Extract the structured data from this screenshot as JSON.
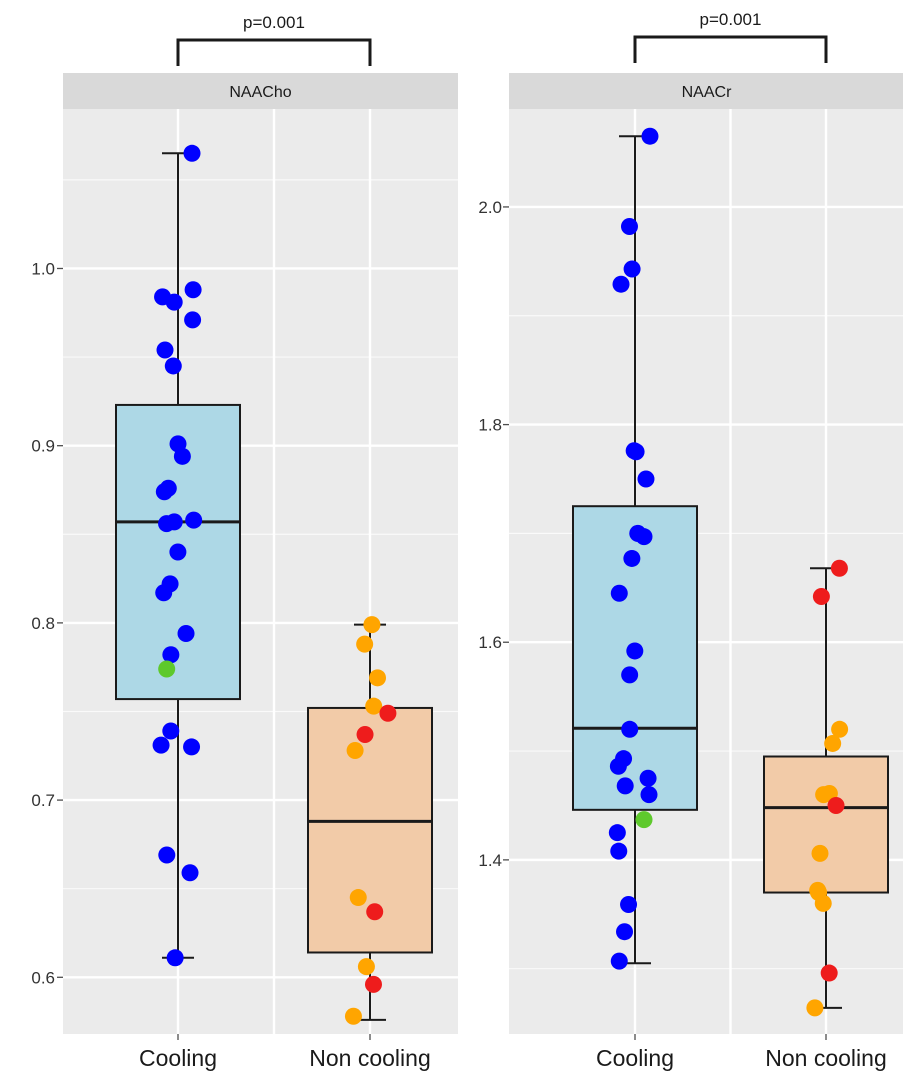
{
  "chart_data": [
    {
      "type": "box",
      "panel_title": "NAACho",
      "annotation": "p=0.001",
      "categories": [
        "Cooling",
        "Non cooling"
      ],
      "ylim": [
        0.568,
        1.09
      ],
      "yticks": [
        0.6,
        0.7,
        0.8,
        0.9,
        1.0
      ],
      "ytick_labels": [
        "0.6",
        "0.7",
        "0.8",
        "0.9",
        "1.0"
      ],
      "grid": true,
      "colors": {
        "box_cooling": "#add8e6",
        "box_noncooling": "#f2cba8",
        "blue": "#0000ff",
        "green": "#5ec92c",
        "orange": "#ffa500",
        "red": "#ee1c1c",
        "panel_bg": "#ebebeb",
        "strip_bg": "#d9d9d9"
      },
      "boxes": [
        {
          "category": "Cooling",
          "whisker_low": 0.611,
          "q1": 0.757,
          "median": 0.857,
          "q3": 0.923,
          "whisker_high": 1.065
        },
        {
          "category": "Non cooling",
          "whisker_low": 0.576,
          "q1": 0.614,
          "median": 0.688,
          "q3": 0.752,
          "whisker_high": 0.799
        }
      ],
      "points": [
        {
          "category": "Cooling",
          "values": [
            1.065,
            0.988,
            0.984,
            0.981,
            0.971,
            0.954,
            0.945,
            0.901,
            0.894,
            0.876,
            0.874,
            0.858,
            0.857,
            0.856,
            0.84,
            0.822,
            0.817,
            0.794,
            0.782,
            0.739,
            0.731,
            0.73,
            0.669,
            0.659,
            0.611
          ],
          "color": "blue"
        },
        {
          "category": "Cooling",
          "values": [
            0.774
          ],
          "color": "green"
        },
        {
          "category": "Non cooling",
          "values": [
            0.799,
            0.788,
            0.769,
            0.753,
            0.728,
            0.645,
            0.606,
            0.578
          ],
          "color": "orange"
        },
        {
          "category": "Non cooling",
          "values": [
            0.749,
            0.737,
            0.637,
            0.596
          ],
          "color": "red"
        }
      ]
    },
    {
      "type": "box",
      "panel_title": "NAACr",
      "annotation": "p=0.001",
      "categories": [
        "Cooling",
        "Non cooling"
      ],
      "ylim": [
        1.24,
        2.09
      ],
      "yticks": [
        1.4,
        1.6,
        1.8,
        2.0
      ],
      "ytick_labels": [
        "1.4",
        "1.6",
        "1.8",
        "2.0"
      ],
      "grid": true,
      "colors": {
        "box_cooling": "#add8e6",
        "box_noncooling": "#f2cba8",
        "blue": "#0000ff",
        "green": "#5ec92c",
        "orange": "#ffa500",
        "red": "#ee1c1c",
        "panel_bg": "#ebebeb",
        "strip_bg": "#d9d9d9"
      },
      "boxes": [
        {
          "category": "Cooling",
          "whisker_low": 1.305,
          "q1": 1.446,
          "median": 1.521,
          "q3": 1.725,
          "whisker_high": 2.065
        },
        {
          "category": "Non cooling",
          "whisker_low": 1.264,
          "q1": 1.37,
          "median": 1.448,
          "q3": 1.495,
          "whisker_high": 1.668
        }
      ],
      "points": [
        {
          "category": "Cooling",
          "values": [
            2.065,
            1.982,
            1.943,
            1.929,
            1.776,
            1.775,
            1.75,
            1.7,
            1.697,
            1.677,
            1.645,
            1.592,
            1.57,
            1.52,
            1.493,
            1.486,
            1.475,
            1.468,
            1.46,
            1.425,
            1.408,
            1.359,
            1.334,
            1.307
          ],
          "color": "blue"
        },
        {
          "category": "Cooling",
          "values": [
            1.437
          ],
          "color": "green"
        },
        {
          "category": "Non cooling",
          "values": [
            1.52,
            1.507,
            1.461,
            1.46,
            1.406,
            1.372,
            1.37,
            1.36,
            1.264
          ],
          "color": "orange"
        },
        {
          "category": "Non cooling",
          "values": [
            1.668,
            1.642,
            1.45,
            1.296
          ],
          "color": "red"
        }
      ]
    }
  ]
}
